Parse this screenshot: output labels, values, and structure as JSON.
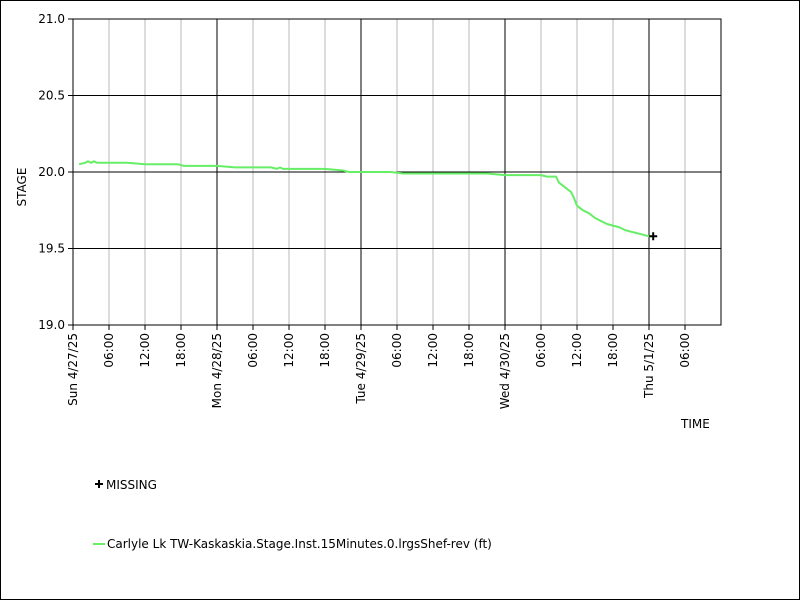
{
  "chart_data": {
    "type": "line",
    "ylabel": "STAGE",
    "xlabel": "TIME",
    "ylim": [
      19.0,
      21.0
    ],
    "y_ticks": [
      "19.0",
      "19.5",
      "20.0",
      "20.5",
      "21.0"
    ],
    "x_range_hours": [
      0,
      108
    ],
    "x_tick_labels": [
      {
        "hour": 0,
        "label": "Sun 4/27/25",
        "major": true
      },
      {
        "hour": 6,
        "label": "06:00",
        "major": false
      },
      {
        "hour": 12,
        "label": "12:00",
        "major": false
      },
      {
        "hour": 18,
        "label": "18:00",
        "major": false
      },
      {
        "hour": 24,
        "label": "Mon 4/28/25",
        "major": true
      },
      {
        "hour": 30,
        "label": "06:00",
        "major": false
      },
      {
        "hour": 36,
        "label": "12:00",
        "major": false
      },
      {
        "hour": 42,
        "label": "18:00",
        "major": false
      },
      {
        "hour": 48,
        "label": "Tue 4/29/25",
        "major": true
      },
      {
        "hour": 54,
        "label": "06:00",
        "major": false
      },
      {
        "hour": 60,
        "label": "12:00",
        "major": false
      },
      {
        "hour": 66,
        "label": "18:00",
        "major": false
      },
      {
        "hour": 72,
        "label": "Wed 4/30/25",
        "major": true
      },
      {
        "hour": 78,
        "label": "06:00",
        "major": false
      },
      {
        "hour": 84,
        "label": "12:00",
        "major": false
      },
      {
        "hour": 90,
        "label": "18:00",
        "major": false
      },
      {
        "hour": 96,
        "label": "Thu 5/1/25",
        "major": true
      },
      {
        "hour": 102,
        "label": "06:00",
        "major": false
      }
    ],
    "grid": true,
    "series": [
      {
        "name": "Carlyle Lk TW-Kaskaskia.Stage.Inst.15Minutes.0.lrgsShef-rev (ft)",
        "color": "#66ee66",
        "points": [
          [
            1.0,
            20.05
          ],
          [
            2.0,
            20.06
          ],
          [
            2.5,
            20.07
          ],
          [
            3.0,
            20.06
          ],
          [
            3.5,
            20.07
          ],
          [
            4.0,
            20.06
          ],
          [
            6.0,
            20.06
          ],
          [
            9.0,
            20.06
          ],
          [
            12.0,
            20.05
          ],
          [
            15.0,
            20.05
          ],
          [
            17.5,
            20.05
          ],
          [
            18.5,
            20.04
          ],
          [
            21.0,
            20.04
          ],
          [
            24.0,
            20.04
          ],
          [
            27.0,
            20.03
          ],
          [
            30.0,
            20.03
          ],
          [
            33.0,
            20.03
          ],
          [
            34.0,
            20.02
          ],
          [
            34.5,
            20.03
          ],
          [
            35.0,
            20.02
          ],
          [
            38.0,
            20.02
          ],
          [
            42.0,
            20.02
          ],
          [
            45.0,
            20.01
          ],
          [
            46.0,
            20.0
          ],
          [
            48.0,
            20.0
          ],
          [
            51.0,
            20.0
          ],
          [
            53.0,
            20.0
          ],
          [
            55.0,
            19.99
          ],
          [
            57.0,
            19.99
          ],
          [
            60.0,
            19.99
          ],
          [
            63.0,
            19.99
          ],
          [
            66.0,
            19.99
          ],
          [
            69.0,
            19.99
          ],
          [
            72.0,
            19.98
          ],
          [
            75.0,
            19.98
          ],
          [
            78.0,
            19.98
          ],
          [
            79.0,
            19.97
          ],
          [
            80.5,
            19.97
          ],
          [
            81.0,
            19.93
          ],
          [
            82.0,
            19.9
          ],
          [
            83.0,
            19.87
          ],
          [
            83.5,
            19.83
          ],
          [
            84.0,
            19.78
          ],
          [
            85.0,
            19.75
          ],
          [
            86.0,
            19.73
          ],
          [
            87.0,
            19.7
          ],
          [
            88.0,
            19.68
          ],
          [
            89.0,
            19.66
          ],
          [
            90.0,
            19.65
          ],
          [
            91.0,
            19.64
          ],
          [
            92.0,
            19.62
          ],
          [
            93.0,
            19.61
          ],
          [
            94.0,
            19.6
          ],
          [
            95.0,
            19.59
          ],
          [
            96.0,
            19.58
          ],
          [
            96.5,
            19.58
          ]
        ]
      }
    ],
    "missing": {
      "label": "MISSING",
      "points": [
        [
          96.7,
          19.58
        ]
      ]
    },
    "legend_placement": "bottom-left"
  }
}
